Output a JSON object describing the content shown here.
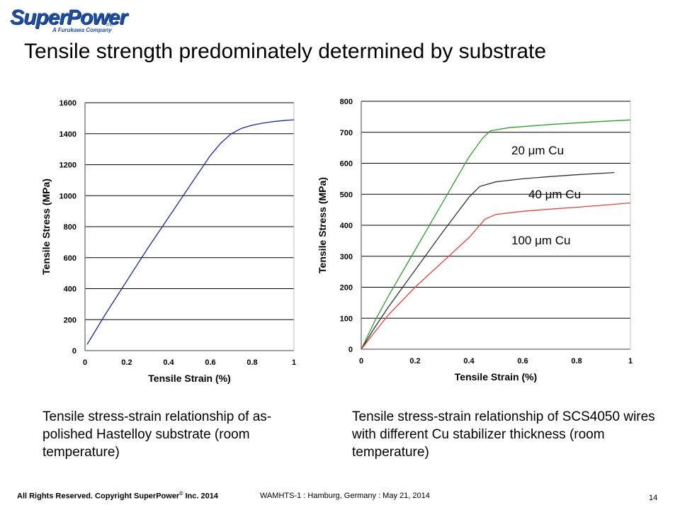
{
  "logo": {
    "brand": "SuperPower",
    "inc": "Inc.",
    "tagline": "A Furukawa Company",
    "brand_color": "#1f4e9c"
  },
  "slide": {
    "title": "Tensile strength predominately determined by substrate"
  },
  "captions": {
    "left": "Tensile stress-strain relationship of as-polished Hastelloy substrate (room temperature)",
    "right": "Tensile stress-strain relationship of SCS4050 wires with different Cu stabilizer thickness (room temperature)"
  },
  "footer": {
    "copyright_prefix": "All Rights Reserved.  Copyright SuperPower",
    "copyright_mark": "©",
    "copyright_suffix": " Inc. 2014",
    "event": "WAMHTS-1 : Hamburg, Germany : May 21, 2014",
    "page_number": "14"
  },
  "chart_data": [
    {
      "type": "line",
      "xlabel": "Tensile Strain (%)",
      "ylabel": "Tensile Stress (MPa)",
      "xlim": [
        0,
        1
      ],
      "ylim": [
        0,
        1600
      ],
      "xticks": [
        "0",
        "0.2",
        "0.4",
        "0.6",
        "0.8",
        "1"
      ],
      "yticks": [
        "0",
        "200",
        "400",
        "600",
        "800",
        "1000",
        "1200",
        "1400",
        "1600"
      ],
      "grid": "horizontal",
      "series": [
        {
          "color": "#1a2a9c",
          "x": [
            0.01,
            0.1,
            0.2,
            0.3,
            0.4,
            0.5,
            0.6,
            0.65,
            0.7,
            0.75,
            0.8,
            0.85,
            0.9,
            0.95,
            1.0
          ],
          "y": [
            40,
            240,
            450,
            660,
            860,
            1060,
            1260,
            1340,
            1400,
            1435,
            1455,
            1468,
            1478,
            1485,
            1490
          ]
        }
      ]
    },
    {
      "type": "line",
      "xlabel": "Tensile Strain (%)",
      "ylabel": "Tensile Stress (MPa)",
      "xlim": [
        0,
        1
      ],
      "ylim": [
        0,
        800
      ],
      "xticks": [
        "0",
        "0.2",
        "0.4",
        "0.6",
        "0.8",
        "1"
      ],
      "yticks": [
        "0",
        "100",
        "200",
        "300",
        "400",
        "500",
        "600",
        "700",
        "800"
      ],
      "grid": "horizontal",
      "series": [
        {
          "name": "20 μm Cu",
          "color": "#2e9e2e",
          "x": [
            0,
            0.05,
            0.1,
            0.2,
            0.3,
            0.4,
            0.45,
            0.48,
            0.55,
            0.7,
            0.85,
            1.0
          ],
          "y": [
            0,
            90,
            170,
            320,
            470,
            620,
            680,
            705,
            715,
            725,
            733,
            740
          ]
        },
        {
          "name": "40 μm Cu",
          "color": "#333333",
          "x": [
            0,
            0.05,
            0.1,
            0.2,
            0.3,
            0.4,
            0.44,
            0.5,
            0.6,
            0.7,
            0.8,
            0.94
          ],
          "y": [
            0,
            70,
            135,
            255,
            375,
            490,
            525,
            540,
            550,
            557,
            563,
            570
          ]
        },
        {
          "name": "100 μm Cu",
          "color": "#e8403a",
          "x": [
            0,
            0.05,
            0.1,
            0.2,
            0.3,
            0.4,
            0.46,
            0.5,
            0.6,
            0.7,
            0.8,
            0.9,
            1.0
          ],
          "y": [
            0,
            55,
            110,
            200,
            280,
            360,
            420,
            435,
            445,
            452,
            458,
            465,
            472
          ]
        }
      ],
      "annotations": [
        "20 μm Cu",
        "40 μm Cu",
        "100 μm Cu"
      ]
    }
  ]
}
